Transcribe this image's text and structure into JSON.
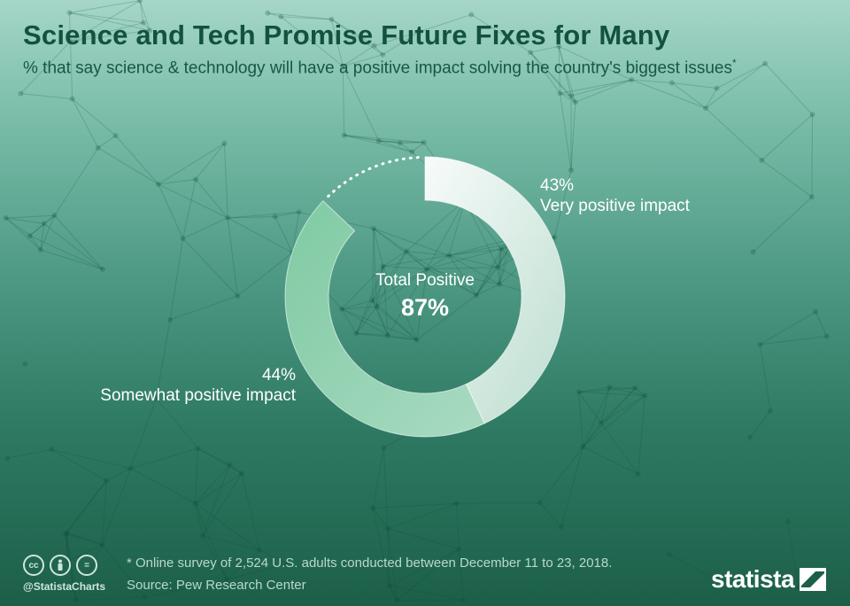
{
  "header": {
    "title": "Science and Tech Promise Future Fixes for Many",
    "subtitle": "% that say science & technology will have a positive impact solving the country's biggest issues",
    "subtitle_mark": "*"
  },
  "chart_data": {
    "type": "pie",
    "style": "donut",
    "slices": [
      {
        "label": "Very positive impact",
        "value": 43,
        "value_label": "43%",
        "color": "#e2f1ea"
      },
      {
        "label": "Somewhat positive impact",
        "value": 44,
        "value_label": "44%",
        "color": "#86caa9"
      }
    ],
    "remainder": {
      "value": 13,
      "style": "dotted"
    },
    "center": {
      "label": "Total Positive",
      "value": "87%"
    }
  },
  "footer": {
    "icons": [
      "cc-icon",
      "person-icon",
      "equals-icon"
    ],
    "handle": "@StatistaCharts",
    "note": "* Online survey of 2,524 U.S. adults conducted between December 11 to 23, 2018.",
    "source": "Source: Pew Research Center",
    "brand": "statista"
  }
}
